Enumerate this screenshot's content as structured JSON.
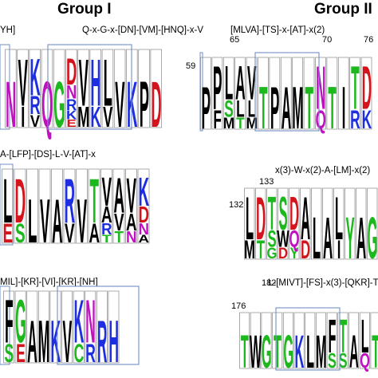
{
  "group_left": "Group I",
  "group_right": "Group II",
  "motifs": {
    "top_left_cut": "YH]",
    "top_left": "Q-x-G-x-[DN]-[VM]-[HNQ]-x-V",
    "top_right": "[MLVA]-[TS]-x-[AT]-x(2)",
    "mid_left": "A-[LFP]-[DS]-L-V-[AT]-x",
    "mid_right": "x(3)-W-x(2)-A-[LM]-x(2)",
    "bot_left": "MIL]-[KR]-[VI]-[KR]-[NH]",
    "bot_right": "L-[MIVT]-[FS]-x(3)-[QKR]-T"
  },
  "positions": {
    "p65": "65",
    "p70": "70",
    "p76": "76",
    "p59": "59",
    "p133": "133",
    "p132": "132",
    "p182": "182",
    "p176": "176"
  },
  "colors": {
    "A": "#000000",
    "D": "#d4141c",
    "E": "#d4141c",
    "G": "#1db81d",
    "K": "#1d2ee0",
    "R": "#1d2ee0",
    "H": "#1d2ee0",
    "N": "#c010c0",
    "Q": "#c010c0",
    "T": "#1db81d",
    "S": "#1db81d",
    "C": "#1db81d",
    "Y": "#1db81d",
    "W": "#000000",
    "other": "#000000",
    "box": "#6f8fc4"
  },
  "logos": [
    {
      "name": "logo-group1-row1",
      "columns": [
        [
          "N"
        ],
        [
          "V",
          "I"
        ],
        [
          "K",
          "R",
          "V"
        ],
        [
          "Q"
        ],
        [
          "G"
        ],
        [
          "D",
          "N",
          "R",
          "K",
          "E"
        ],
        [
          "V",
          "M"
        ],
        [
          "H",
          "K"
        ],
        [
          "L",
          "V"
        ],
        [
          "V"
        ],
        [
          "K"
        ],
        [
          "P"
        ],
        [
          "D"
        ]
      ]
    },
    {
      "name": "logo-group1-row2",
      "columns": [
        [
          "L",
          "E"
        ],
        [
          "D",
          "S"
        ],
        [
          "L"
        ],
        [
          "V"
        ],
        [
          "A"
        ],
        [
          "R",
          "V"
        ],
        [
          "V"
        ],
        [
          "T",
          "A"
        ],
        [
          "V",
          "A",
          "R",
          "T"
        ],
        [
          "A",
          "V",
          "T"
        ],
        [
          "V",
          "A",
          "N"
        ],
        [
          "K",
          "D",
          "N",
          "A"
        ]
      ]
    },
    {
      "name": "logo-group1-row3",
      "columns": [
        [
          "F",
          "S"
        ],
        [
          "G",
          "E"
        ],
        [
          "A"
        ],
        [
          "M"
        ],
        [
          "K"
        ],
        [
          "V"
        ],
        [
          "K",
          "C"
        ],
        [
          "N",
          "R"
        ],
        [
          "R"
        ],
        [
          "H"
        ]
      ]
    },
    {
      "name": "logo-group2-row1",
      "columns": [
        [
          "P"
        ],
        [
          "P",
          "F"
        ],
        [
          "L",
          "S",
          "M"
        ],
        [
          "A",
          "L",
          "T"
        ],
        [
          "V",
          "L",
          "M"
        ],
        [
          "T"
        ],
        [
          "P"
        ],
        [
          "A"
        ],
        [
          "M"
        ],
        [
          "T"
        ],
        [
          "N",
          "Q"
        ],
        [
          "T"
        ],
        [
          "I"
        ],
        [
          "T",
          "R"
        ],
        [
          "D",
          "K"
        ]
      ]
    },
    {
      "name": "logo-group2-row2",
      "columns": [
        [
          "L",
          "M"
        ],
        [
          "D",
          "T"
        ],
        [
          "T",
          "S",
          "G"
        ],
        [
          "S",
          "W",
          "D"
        ],
        [
          "D",
          "Q",
          "Y"
        ],
        [
          "A",
          "D"
        ],
        [
          "L"
        ],
        [
          "A"
        ],
        [
          "L",
          "I"
        ],
        [
          "Y"
        ],
        [
          "A"
        ],
        [
          "G"
        ]
      ]
    },
    {
      "name": "logo-group2-row3",
      "columns": [
        [
          "T"
        ],
        [
          "W"
        ],
        [
          "G"
        ],
        [
          "T"
        ],
        [
          "G"
        ],
        [
          "K"
        ],
        [
          "L"
        ],
        [
          "M"
        ],
        [
          "F",
          "S"
        ],
        [
          "T",
          "S"
        ],
        [
          "A"
        ],
        [
          "L",
          "Q"
        ],
        [
          "T"
        ]
      ]
    }
  ]
}
